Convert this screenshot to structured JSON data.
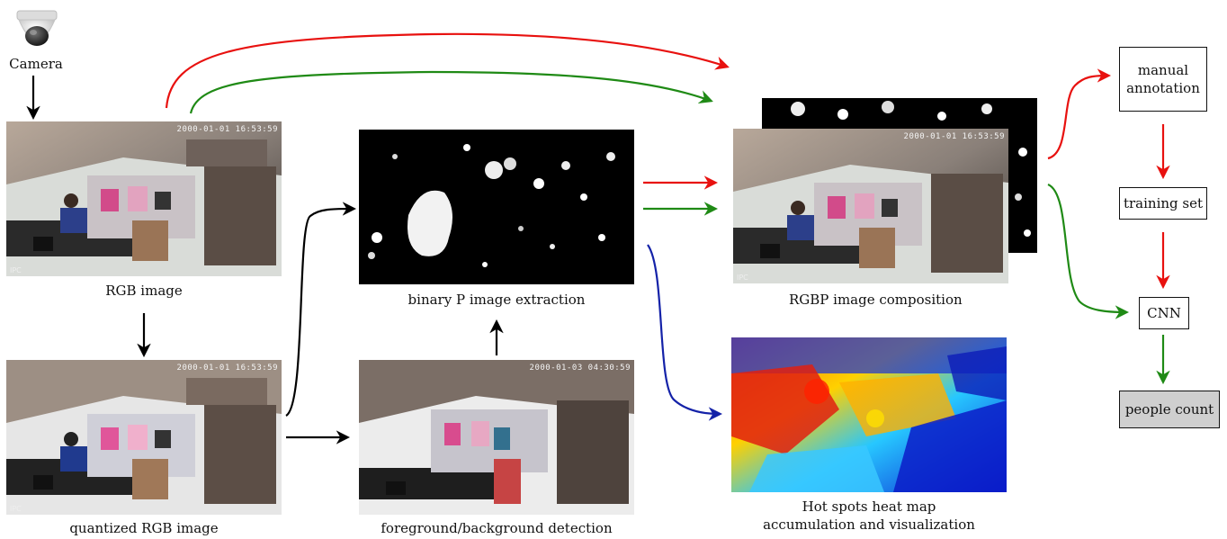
{
  "camera": {
    "label": "Camera",
    "icon": "dome-camera-icon"
  },
  "nodes": {
    "rgb_image": "RGB image",
    "quantized_rgb": "quantized RGB image",
    "binary_p": "binary P image extraction",
    "fg_bg": "foreground/background detection",
    "rgbp": "RGBP image composition",
    "heatmap_line1": "Hot spots heat map",
    "heatmap_line2": "accumulation and visualization"
  },
  "overlays": {
    "timestamp": "2000-01-01 16:53:59",
    "timestamp_fg": "2000-01-03 04:30:59",
    "ipc": "IPC"
  },
  "boxes": {
    "manual_line1": "manual",
    "manual_line2": "annotation",
    "training_set": "training set",
    "cnn": "CNN",
    "people_count": "people count"
  },
  "colors": {
    "red": "#e8110f",
    "green": "#1f8a15",
    "blue": "#1422a8",
    "black": "#000000",
    "people_count_fill": "#cfcfcf"
  }
}
